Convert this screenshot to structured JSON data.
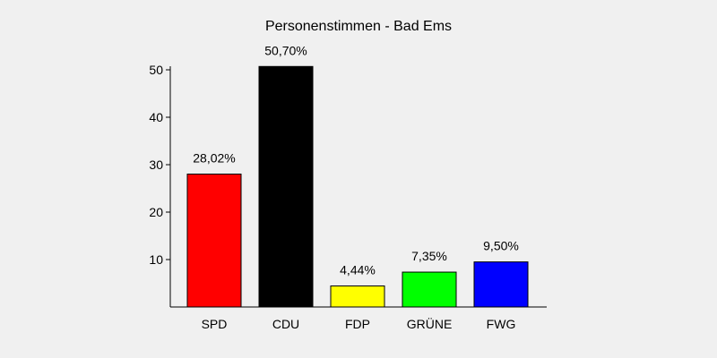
{
  "chart_data": {
    "type": "bar",
    "title": "Personenstimmen - Bad Ems",
    "xlabel": "",
    "ylabel": "",
    "ylim": [
      0,
      52
    ],
    "yticks": [
      10,
      20,
      30,
      40,
      50
    ],
    "grid": false,
    "categories": [
      "SPD",
      "CDU",
      "FDP",
      "GRÜNE",
      "FWG"
    ],
    "values": [
      28.02,
      50.7,
      4.44,
      7.35,
      9.5
    ],
    "data_labels": [
      "28,02%",
      "50,70%",
      "4,44%",
      "7,35%",
      "9,50%"
    ],
    "colors": [
      "#ff0000",
      "#000000",
      "#ffff00",
      "#00ff00",
      "#0000ff"
    ],
    "background": "#f0f0f0"
  }
}
